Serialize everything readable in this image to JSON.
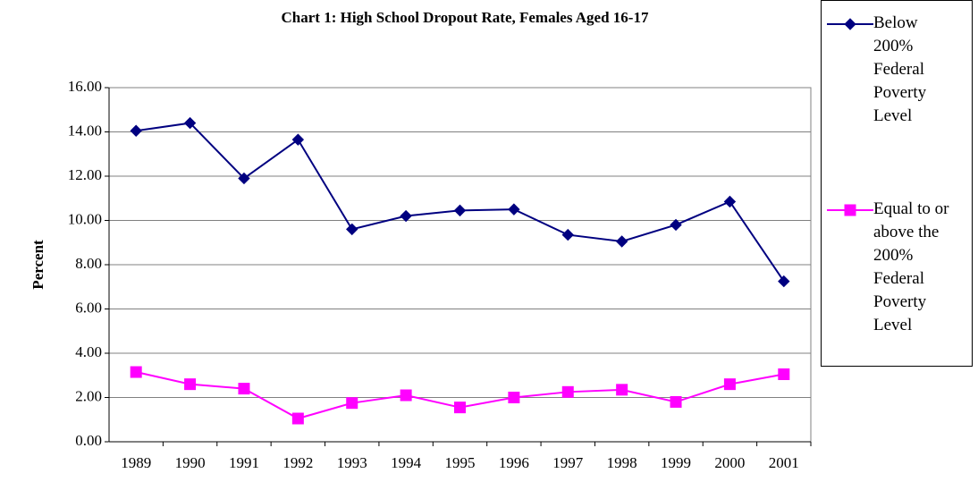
{
  "chart_data": {
    "type": "line",
    "title": "Chart 1: High School Dropout Rate, Females Aged 16-17",
    "y_label": "Percent",
    "categories": [
      "1989",
      "1990",
      "1991",
      "1992",
      "1993",
      "1994",
      "1995",
      "1996",
      "1997",
      "1998",
      "1999",
      "2000",
      "2001"
    ],
    "series": [
      {
        "name": "Below 200% Federal Poverty Level",
        "color": "#000080",
        "marker": "diamond",
        "values": [
          14.05,
          14.4,
          11.9,
          13.65,
          9.6,
          10.2,
          10.45,
          10.5,
          9.35,
          9.05,
          9.8,
          10.85,
          7.25
        ]
      },
      {
        "name": "Equal to or above the 200% Federal Poverty Level",
        "color": "#ff00ff",
        "marker": "square",
        "values": [
          3.15,
          2.6,
          2.4,
          1.05,
          1.75,
          2.1,
          1.55,
          2.0,
          2.25,
          2.35,
          1.8,
          2.6,
          3.05
        ]
      }
    ],
    "ylim": [
      0,
      16
    ],
    "yticks": [
      {
        "value": 0,
        "label": "0.00"
      },
      {
        "value": 2,
        "label": "2.00"
      },
      {
        "value": 4,
        "label": "4.00"
      },
      {
        "value": 6,
        "label": "6.00"
      },
      {
        "value": 8,
        "label": "8.00"
      },
      {
        "value": 10,
        "label": "10.00"
      },
      {
        "value": 12,
        "label": "12.00"
      },
      {
        "value": 14,
        "label": "14.00"
      },
      {
        "value": 16,
        "label": "16.00"
      }
    ],
    "grid": true
  }
}
